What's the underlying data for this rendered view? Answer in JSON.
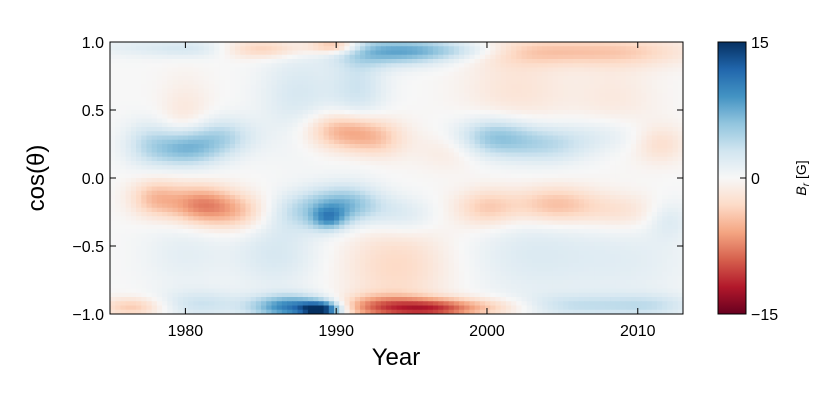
{
  "chart_data": {
    "type": "heatmap",
    "xlabel": "Year",
    "ylabel": "cos(θ)",
    "xlim": [
      1975,
      2013
    ],
    "ylim": [
      -1.0,
      1.0
    ],
    "x_ticks": [
      1980,
      1990,
      2000,
      2010
    ],
    "x_tick_labels": [
      "1980",
      "1990",
      "2000",
      "2010"
    ],
    "y_ticks": [
      1.0,
      0.5,
      0.0,
      -0.5,
      -1.0
    ],
    "y_tick_labels": [
      "1.0",
      "0.5",
      "0.0",
      "−0.5",
      "−1.0"
    ],
    "colorbar": {
      "label_main": "B",
      "label_sub": "r",
      "label_unit": " [G]",
      "range": [
        -15,
        15
      ],
      "ticks": [
        15,
        0,
        -15
      ],
      "tick_labels": [
        "15",
        "0",
        "−15"
      ],
      "colormap": "RdBu_r"
    },
    "features": [
      {
        "x": 1977,
        "y": 0.96,
        "value": 1.5,
        "sx": 2.5,
        "sy": 0.05
      },
      {
        "x": 1981,
        "y": 0.95,
        "value": 2.5,
        "sx": 2.0,
        "sy": 0.05
      },
      {
        "x": 1985,
        "y": 0.95,
        "value": -4.0,
        "sx": 2.2,
        "sy": 0.05
      },
      {
        "x": 1990,
        "y": 0.97,
        "value": -6.0,
        "sx": 1.2,
        "sy": 0.04
      },
      {
        "x": 1994,
        "y": 0.93,
        "value": 7.0,
        "sx": 2.5,
        "sy": 0.07
      },
      {
        "x": 1998,
        "y": 0.94,
        "value": 3.0,
        "sx": 2.5,
        "sy": 0.05
      },
      {
        "x": 2004,
        "y": 0.93,
        "value": -3.5,
        "sx": 3.5,
        "sy": 0.07
      },
      {
        "x": 2010,
        "y": 0.93,
        "value": -2.5,
        "sx": 3.0,
        "sy": 0.08
      },
      {
        "x": 1980,
        "y": 0.4,
        "value": -2.0,
        "sx": 1.2,
        "sy": 0.22
      },
      {
        "x": 1987.5,
        "y": 0.6,
        "value": 2.5,
        "sx": 1.8,
        "sy": 0.25
      },
      {
        "x": 1991.5,
        "y": 0.65,
        "value": 3.0,
        "sx": 1.3,
        "sy": 0.3
      },
      {
        "x": 2002,
        "y": 0.65,
        "value": -2.0,
        "sx": 2.5,
        "sy": 0.25
      },
      {
        "x": 2008.5,
        "y": 0.55,
        "value": -1.5,
        "sx": 2.0,
        "sy": 0.25
      },
      {
        "x": 1977.5,
        "y": 0.25,
        "value": 3.0,
        "sx": 1.2,
        "sy": 0.12
      },
      {
        "x": 1980,
        "y": 0.22,
        "value": 7.5,
        "sx": 1.5,
        "sy": 0.1
      },
      {
        "x": 1982.5,
        "y": 0.3,
        "value": 4.0,
        "sx": 1.5,
        "sy": 0.1
      },
      {
        "x": 1990.5,
        "y": 0.35,
        "value": -6.0,
        "sx": 1.8,
        "sy": 0.1
      },
      {
        "x": 1992.5,
        "y": 0.28,
        "value": -3.5,
        "sx": 1.5,
        "sy": 0.1
      },
      {
        "x": 1997.5,
        "y": 0.2,
        "value": -1.5,
        "sx": 1.5,
        "sy": 0.1
      },
      {
        "x": 2000.5,
        "y": 0.3,
        "value": 6.0,
        "sx": 1.8,
        "sy": 0.1
      },
      {
        "x": 2004,
        "y": 0.25,
        "value": 4.0,
        "sx": 2.0,
        "sy": 0.1
      },
      {
        "x": 2008,
        "y": 0.32,
        "value": 2.0,
        "sx": 2.0,
        "sy": 0.1
      },
      {
        "x": 2011.5,
        "y": 0.25,
        "value": -2.5,
        "sx": 1.2,
        "sy": 0.1
      },
      {
        "x": 1978,
        "y": -0.15,
        "value": -4.5,
        "sx": 1.2,
        "sy": 0.1
      },
      {
        "x": 1981,
        "y": -0.2,
        "value": -7.0,
        "sx": 1.5,
        "sy": 0.1
      },
      {
        "x": 1983.5,
        "y": -0.25,
        "value": -4.0,
        "sx": 1.5,
        "sy": 0.1
      },
      {
        "x": 1987.5,
        "y": -0.25,
        "value": 2.5,
        "sx": 1.5,
        "sy": 0.1
      },
      {
        "x": 1990.5,
        "y": -0.2,
        "value": 7.0,
        "sx": 1.8,
        "sy": 0.1
      },
      {
        "x": 1989.5,
        "y": -0.3,
        "value": 6.0,
        "sx": 0.8,
        "sy": 0.06
      },
      {
        "x": 1994.5,
        "y": -0.28,
        "value": 2.5,
        "sx": 1.5,
        "sy": 0.1
      },
      {
        "x": 2000,
        "y": -0.22,
        "value": -4.0,
        "sx": 1.5,
        "sy": 0.1
      },
      {
        "x": 2004.5,
        "y": -0.2,
        "value": -5.0,
        "sx": 2.0,
        "sy": 0.1
      },
      {
        "x": 2009,
        "y": -0.25,
        "value": -2.5,
        "sx": 2.0,
        "sy": 0.1
      },
      {
        "x": 2012,
        "y": -0.3,
        "value": 2.0,
        "sx": 1.0,
        "sy": 0.1
      },
      {
        "x": 1980,
        "y": -0.55,
        "value": 1.5,
        "sx": 2.0,
        "sy": 0.2
      },
      {
        "x": 1986,
        "y": -0.55,
        "value": 2.5,
        "sx": 2.0,
        "sy": 0.2
      },
      {
        "x": 1994,
        "y": -0.65,
        "value": -3.0,
        "sx": 2.5,
        "sy": 0.25
      },
      {
        "x": 2003,
        "y": -0.55,
        "value": 2.0,
        "sx": 3.0,
        "sy": 0.25
      },
      {
        "x": 2009.5,
        "y": -0.6,
        "value": 1.5,
        "sx": 3.0,
        "sy": 0.25
      },
      {
        "x": 1976.5,
        "y": -0.95,
        "value": -4.0,
        "sx": 1.5,
        "sy": 0.05
      },
      {
        "x": 1981,
        "y": -0.93,
        "value": 3.0,
        "sx": 2.0,
        "sy": 0.07
      },
      {
        "x": 1987,
        "y": -0.95,
        "value": 10.0,
        "sx": 1.8,
        "sy": 0.06
      },
      {
        "x": 1989,
        "y": -0.97,
        "value": 13.0,
        "sx": 0.9,
        "sy": 0.04
      },
      {
        "x": 1993,
        "y": -0.95,
        "value": -7.0,
        "sx": 2.0,
        "sy": 0.06
      },
      {
        "x": 1996.5,
        "y": -0.96,
        "value": -9.0,
        "sx": 2.0,
        "sy": 0.05
      },
      {
        "x": 2000.5,
        "y": -0.95,
        "value": -3.0,
        "sx": 2.0,
        "sy": 0.05
      },
      {
        "x": 2006,
        "y": -0.94,
        "value": 3.0,
        "sx": 3.0,
        "sy": 0.06
      },
      {
        "x": 2011,
        "y": -0.94,
        "value": 2.5,
        "sx": 2.0,
        "sy": 0.06
      }
    ]
  }
}
